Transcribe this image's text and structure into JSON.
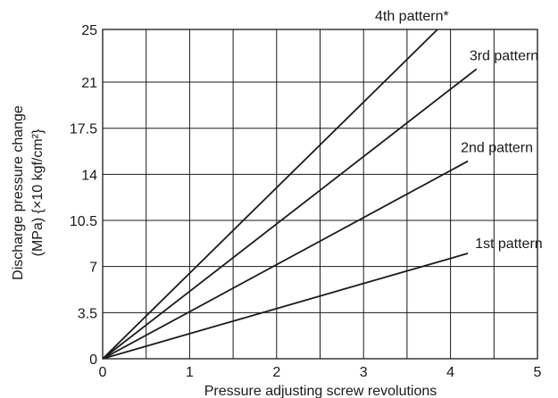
{
  "chart_data": {
    "type": "line",
    "xlabel": "Pressure adjusting screw revolutions",
    "ylabel_line1": "Discharge pressure change",
    "ylabel_line2": "(MPa) {×10 kgf/cm²}",
    "xlim": [
      0,
      5
    ],
    "ylim": [
      0,
      25
    ],
    "x_ticks": [
      0,
      0.5,
      1,
      1.5,
      2,
      2.5,
      3,
      3.5,
      4,
      4.5,
      5
    ],
    "x_tick_labels": [
      "0",
      "1",
      "2",
      "3",
      "4",
      "5"
    ],
    "x_tick_label_values": [
      0,
      1,
      2,
      3,
      4,
      5
    ],
    "y_ticks": [
      0,
      3.5,
      7,
      10.5,
      14,
      17.5,
      21,
      25
    ],
    "y_tick_labels": [
      "0",
      "3.5",
      "7",
      "10.5",
      "14",
      "17.5",
      "21",
      "25"
    ],
    "grid": true,
    "series": [
      {
        "name": "1st pattern",
        "x": [
          0,
          4.2
        ],
        "y": [
          0,
          8.0
        ]
      },
      {
        "name": "2nd pattern",
        "x": [
          0,
          4.2
        ],
        "y": [
          0,
          15.0
        ]
      },
      {
        "name": "3rd pattern",
        "x": [
          0,
          4.3
        ],
        "y": [
          0,
          22.0
        ]
      },
      {
        "name": "4th pattern*",
        "x": [
          0,
          3.85
        ],
        "y": [
          0,
          25.0
        ]
      }
    ]
  },
  "colors": {
    "line": "#1a1a1a",
    "grid": "#1a1a1a",
    "background": "#ffffff"
  }
}
